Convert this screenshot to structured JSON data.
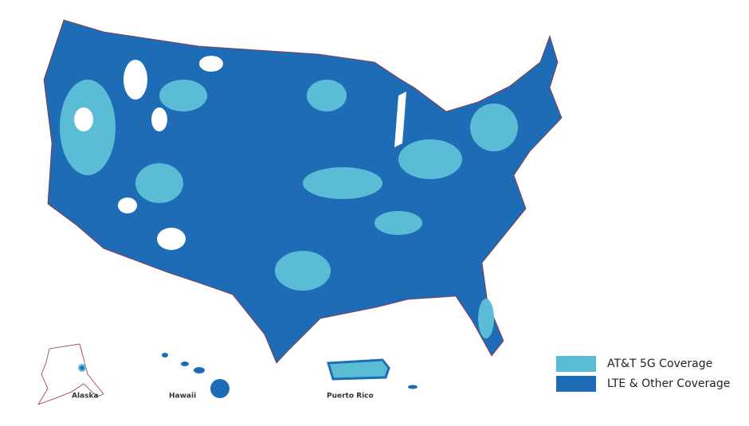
{
  "map": {
    "legend": {
      "items": [
        {
          "label": "AT&T 5G Coverage",
          "color": "#5bbcd6"
        },
        {
          "label": "LTE & Other Coverage",
          "color": "#1d6cb5"
        }
      ]
    },
    "insets": [
      {
        "label": "Alaska"
      },
      {
        "label": "Hawaii"
      },
      {
        "label": "Puerto Rico"
      }
    ]
  }
}
